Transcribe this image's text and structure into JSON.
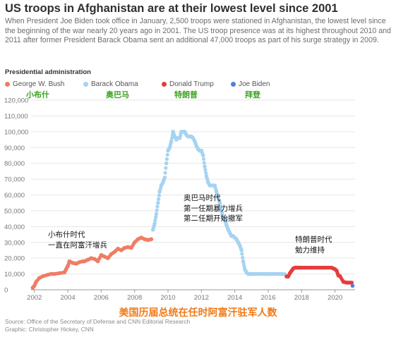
{
  "title": "US troops in Afghanistan are at their lowest level since 2001",
  "subtitle": "When President Joe Biden took office in January, 2,500 troops were stationed in Afghanistan, the lowest level since the beginning of the war nearly 20 years ago in 2001. The US troop presence was at its highest throughout 2010 and 2011 after former President Barack Obama sent an additional 47,000 troops as part of his surge strategy in 2009.",
  "legend_title": "Presidential administration",
  "legend": [
    {
      "label": "George W. Bush",
      "color": "#f07d65",
      "cn": "小布什"
    },
    {
      "label": "Barack Obama",
      "color": "#a6d3f1",
      "cn": "奥巴马"
    },
    {
      "label": "Donald Trump",
      "color": "#e63c3c",
      "cn": "特朗普"
    },
    {
      "label": "Joe Biden",
      "color": "#4f7fe0",
      "cn": "拜登"
    }
  ],
  "annotations": {
    "bush": [
      "小布什时代",
      "一直在阿富汗增兵"
    ],
    "obama": [
      "奥巴马时代",
      "第一任期暴力增兵",
      "第二任期开始撤军"
    ],
    "trump": [
      "特朗普时代",
      "勉力维持"
    ]
  },
  "bottom_caption": "美国历届总统在任时阿富汗驻军人数",
  "source": "Source: Office of the Secretary of Defense and CNN Editorial Research",
  "graphic": "Graphic: Christopher Hickey, CNN",
  "chart_data": {
    "type": "scatter",
    "title": "US troops in Afghanistan are at their lowest level since 2001",
    "ylim": [
      0,
      120000
    ],
    "xlim": [
      2001.8,
      2021.2
    ],
    "y_ticks": [
      0,
      10000,
      20000,
      30000,
      40000,
      50000,
      60000,
      70000,
      80000,
      90000,
      100000,
      110000,
      120000
    ],
    "y_tick_labels": [
      "0",
      "10,000",
      "20,000",
      "30,000",
      "40,000",
      "50,000",
      "60,000",
      "70,000",
      "80,000",
      "90,000",
      "100,000",
      "110,000",
      "120,000"
    ],
    "x_ticks": [
      2002,
      2004,
      2006,
      2008,
      2010,
      2012,
      2014,
      2016,
      2018,
      2020
    ],
    "x_tick_labels": [
      "2002",
      "2004",
      "2006",
      "2008",
      "2010",
      "2012",
      "2014",
      "2016",
      "2018",
      "2020"
    ],
    "grid": "horizontal",
    "legend_position": "top",
    "series": [
      {
        "name": "George W. Bush",
        "color": "#f07d65",
        "x": [
          2001.9,
          2002.0,
          2002.1,
          2002.3,
          2002.5,
          2002.8,
          2003.0,
          2003.2,
          2003.5,
          2003.8,
          2003.9,
          2004.0,
          2004.1,
          2004.3,
          2004.5,
          2004.7,
          2004.9,
          2005.0,
          2005.2,
          2005.4,
          2005.6,
          2005.8,
          2006.0,
          2006.2,
          2006.4,
          2006.6,
          2006.8,
          2007.0,
          2007.2,
          2007.4,
          2007.6,
          2007.8,
          2008.0,
          2008.2,
          2008.4,
          2008.6,
          2008.8,
          2009.0
        ],
        "y": [
          1300,
          2500,
          5000,
          7500,
          8500,
          9500,
          10000,
          10000,
          10500,
          11000,
          13000,
          15000,
          18000,
          17000,
          16500,
          17500,
          18000,
          18000,
          19000,
          20000,
          19500,
          18000,
          22000,
          21000,
          20000,
          22500,
          24000,
          26000,
          25000,
          26500,
          27000,
          26500,
          30000,
          32000,
          33000,
          32000,
          31500,
          32000
        ]
      },
      {
        "name": "Barack Obama",
        "color": "#a6d3f1",
        "x": [
          2009.1,
          2009.2,
          2009.3,
          2009.4,
          2009.5,
          2009.6,
          2009.7,
          2009.8,
          2009.9,
          2010.0,
          2010.1,
          2010.2,
          2010.3,
          2010.4,
          2010.5,
          2010.6,
          2010.7,
          2010.8,
          2010.9,
          2011.0,
          2011.1,
          2011.2,
          2011.3,
          2011.4,
          2011.5,
          2011.6,
          2011.7,
          2011.8,
          2011.9,
          2012.0,
          2012.1,
          2012.2,
          2012.3,
          2012.4,
          2012.5,
          2012.6,
          2012.7,
          2012.8,
          2012.9,
          2013.0,
          2013.1,
          2013.2,
          2013.3,
          2013.4,
          2013.5,
          2013.6,
          2013.7,
          2013.8,
          2013.9,
          2014.0,
          2014.1,
          2014.2,
          2014.3,
          2014.4,
          2014.5,
          2014.6,
          2014.7,
          2014.8,
          2014.9,
          2015.0,
          2015.2,
          2015.4,
          2015.6,
          2015.8,
          2016.0,
          2016.2,
          2016.4,
          2016.6,
          2016.8,
          2017.0
        ],
        "y": [
          38000,
          42000,
          48000,
          55000,
          62000,
          66000,
          68000,
          71000,
          80000,
          88000,
          90000,
          94000,
          100000,
          97000,
          95000,
          96000,
          96000,
          100000,
          100000,
          100000,
          98000,
          97000,
          97000,
          97000,
          96000,
          94000,
          91000,
          89000,
          88000,
          88000,
          85000,
          78000,
          72000,
          68000,
          66000,
          66000,
          66000,
          66000,
          62000,
          58000,
          55000,
          50000,
          46000,
          44000,
          41000,
          38000,
          36000,
          34000,
          34000,
          33000,
          32000,
          30000,
          28000,
          25000,
          18000,
          13000,
          11000,
          10000,
          10000,
          10000,
          10000,
          10000,
          10000,
          10000,
          10000,
          10000,
          10000,
          10000,
          10000,
          9800
        ]
      },
      {
        "name": "Donald Trump",
        "color": "#e63c3c",
        "x": [
          2017.1,
          2017.2,
          2017.3,
          2017.4,
          2017.5,
          2017.6,
          2017.7,
          2017.8,
          2017.9,
          2018.0,
          2018.2,
          2018.4,
          2018.6,
          2018.8,
          2019.0,
          2019.2,
          2019.4,
          2019.6,
          2019.8,
          2019.9,
          2020.0,
          2020.1,
          2020.2,
          2020.3,
          2020.5,
          2020.6,
          2020.7,
          2020.8,
          2020.9,
          2021.0
        ],
        "y": [
          8400,
          8400,
          10500,
          12000,
          13500,
          14000,
          14000,
          14000,
          14000,
          14000,
          14000,
          14000,
          14000,
          14000,
          14000,
          14000,
          14000,
          14000,
          14000,
          13500,
          13000,
          12000,
          9000,
          8600,
          5000,
          4800,
          4500,
          4500,
          4500,
          4500
        ]
      },
      {
        "name": "Joe Biden",
        "color": "#4f7fe0",
        "x": [
          2021.05
        ],
        "y": [
          2500
        ]
      }
    ]
  }
}
